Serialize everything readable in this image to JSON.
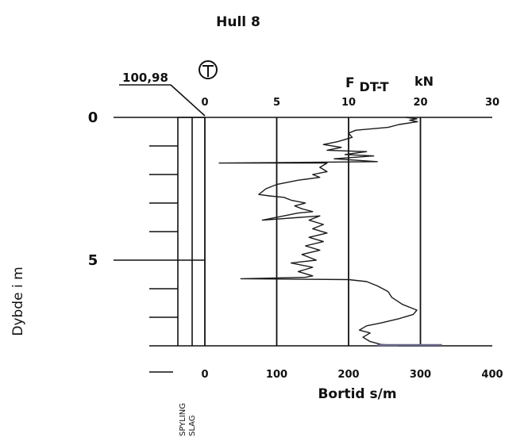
{
  "title": "Hull 8",
  "elevation": "100,98",
  "symbol": "T",
  "force_label": "F",
  "force_subscript": "DT-T",
  "force_unit": "kN",
  "y_axis_label": "Dybde i m",
  "bottom_axis_label": "Bortid s/m",
  "flag_labels": [
    "SPYLING",
    "SLAG"
  ],
  "colors": {
    "ink": "#111111",
    "trace": "#1a1a1a",
    "accent": "#6a6a8a"
  },
  "chart_data": {
    "type": "line",
    "title": "Hull 8",
    "xlabel": "Bortid s/m",
    "ylabel": "Dybde i m",
    "top_axis": {
      "label": "F DT-T kN",
      "ticks": [
        0,
        5,
        10,
        20,
        30
      ],
      "range": [
        0,
        20
      ]
    },
    "bottom_axis": {
      "ticks": [
        0,
        100,
        200,
        300,
        400
      ],
      "range": [
        0,
        400
      ]
    },
    "y_ticks": [
      0,
      5
    ],
    "ylim": [
      0,
      8
    ],
    "grid": true,
    "series": [
      {
        "name": "",
        "points": [
          [
            280,
            0.0
          ],
          [
            295,
            0.05
          ],
          [
            285,
            0.1
          ],
          [
            296,
            0.15
          ],
          [
            270,
            0.25
          ],
          [
            255,
            0.35
          ],
          [
            210,
            0.45
          ],
          [
            200,
            0.55
          ],
          [
            205,
            0.7
          ],
          [
            185,
            0.85
          ],
          [
            165,
            0.95
          ],
          [
            190,
            1.05
          ],
          [
            170,
            1.15
          ],
          [
            225,
            1.2
          ],
          [
            195,
            1.3
          ],
          [
            235,
            1.35
          ],
          [
            180,
            1.45
          ],
          [
            240,
            1.55
          ],
          [
            20,
            1.6
          ],
          [
            170,
            1.6
          ],
          [
            160,
            1.75
          ],
          [
            170,
            1.9
          ],
          [
            150,
            2.0
          ],
          [
            160,
            2.1
          ],
          [
            130,
            2.2
          ],
          [
            100,
            2.35
          ],
          [
            85,
            2.5
          ],
          [
            75,
            2.7
          ],
          [
            90,
            2.75
          ],
          [
            110,
            2.8
          ],
          [
            120,
            2.9
          ],
          [
            140,
            3.0
          ],
          [
            125,
            3.1
          ],
          [
            135,
            3.2
          ],
          [
            150,
            3.3
          ],
          [
            130,
            3.35
          ],
          [
            80,
            3.6
          ],
          [
            160,
            3.45
          ],
          [
            145,
            3.6
          ],
          [
            165,
            3.75
          ],
          [
            150,
            3.9
          ],
          [
            170,
            4.05
          ],
          [
            145,
            4.2
          ],
          [
            165,
            4.35
          ],
          [
            140,
            4.5
          ],
          [
            160,
            4.65
          ],
          [
            135,
            4.8
          ],
          [
            155,
            5.0
          ],
          [
            120,
            5.1
          ],
          [
            150,
            5.25
          ],
          [
            130,
            5.4
          ],
          [
            150,
            5.55
          ],
          [
            140,
            5.6
          ],
          [
            50,
            5.65
          ],
          [
            200,
            5.68
          ],
          [
            225,
            5.75
          ],
          [
            240,
            5.9
          ],
          [
            255,
            6.1
          ],
          [
            260,
            6.3
          ],
          [
            275,
            6.55
          ],
          [
            295,
            6.75
          ],
          [
            290,
            6.9
          ],
          [
            270,
            7.05
          ],
          [
            245,
            7.2
          ],
          [
            225,
            7.3
          ],
          [
            215,
            7.45
          ],
          [
            230,
            7.55
          ],
          [
            220,
            7.7
          ],
          [
            230,
            7.85
          ],
          [
            245,
            7.95
          ],
          [
            270,
            8.0
          ],
          [
            330,
            8.0
          ]
        ]
      }
    ]
  }
}
